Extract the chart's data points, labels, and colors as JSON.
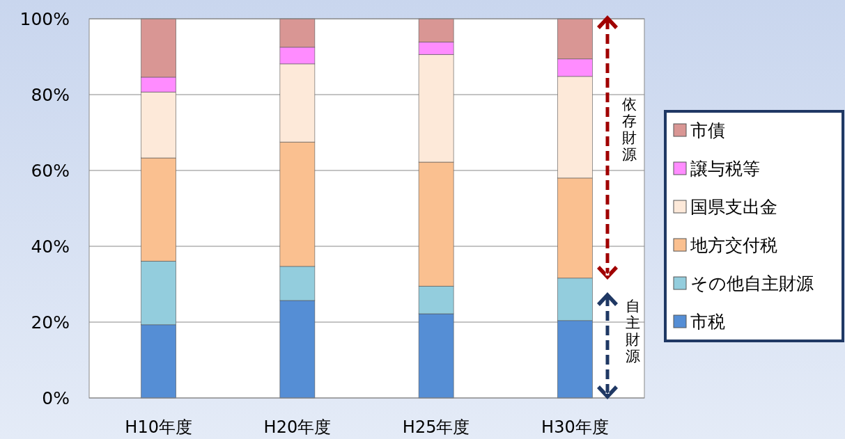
{
  "chart_data": {
    "type": "bar",
    "stacked": true,
    "categories": [
      "H10年度",
      "H20年度",
      "H25年度",
      "H30年度"
    ],
    "series": [
      {
        "name": "市税",
        "color": "#558ed5",
        "values": [
          19.3,
          25.7,
          22.2,
          20.4
        ]
      },
      {
        "name": "その他自主財源",
        "color": "#93cddd",
        "values": [
          16.8,
          9.0,
          7.3,
          11.2
        ]
      },
      {
        "name": "地方交付税",
        "color": "#fac090",
        "values": [
          27.2,
          32.8,
          32.7,
          26.4
        ]
      },
      {
        "name": "国県支出金",
        "color": "#fde9d9",
        "values": [
          17.4,
          20.6,
          28.4,
          26.8
        ]
      },
      {
        "name": "譲与税等",
        "color": "#ff8cff",
        "values": [
          3.9,
          4.4,
          3.3,
          4.6
        ]
      },
      {
        "name": "市債",
        "color": "#d99694",
        "values": [
          15.4,
          7.5,
          6.1,
          10.6
        ]
      }
    ],
    "ylim": [
      0,
      100
    ],
    "yticks": [
      {
        "value": 0,
        "label": "0%"
      },
      {
        "value": 20,
        "label": "20%"
      },
      {
        "value": 40,
        "label": "40%"
      },
      {
        "value": 60,
        "label": "60%"
      },
      {
        "value": 80,
        "label": "80%"
      },
      {
        "value": 100,
        "label": "100%"
      }
    ],
    "grid": "y",
    "legend": "right",
    "annotations": [
      "依存財源",
      "自主財源"
    ]
  }
}
